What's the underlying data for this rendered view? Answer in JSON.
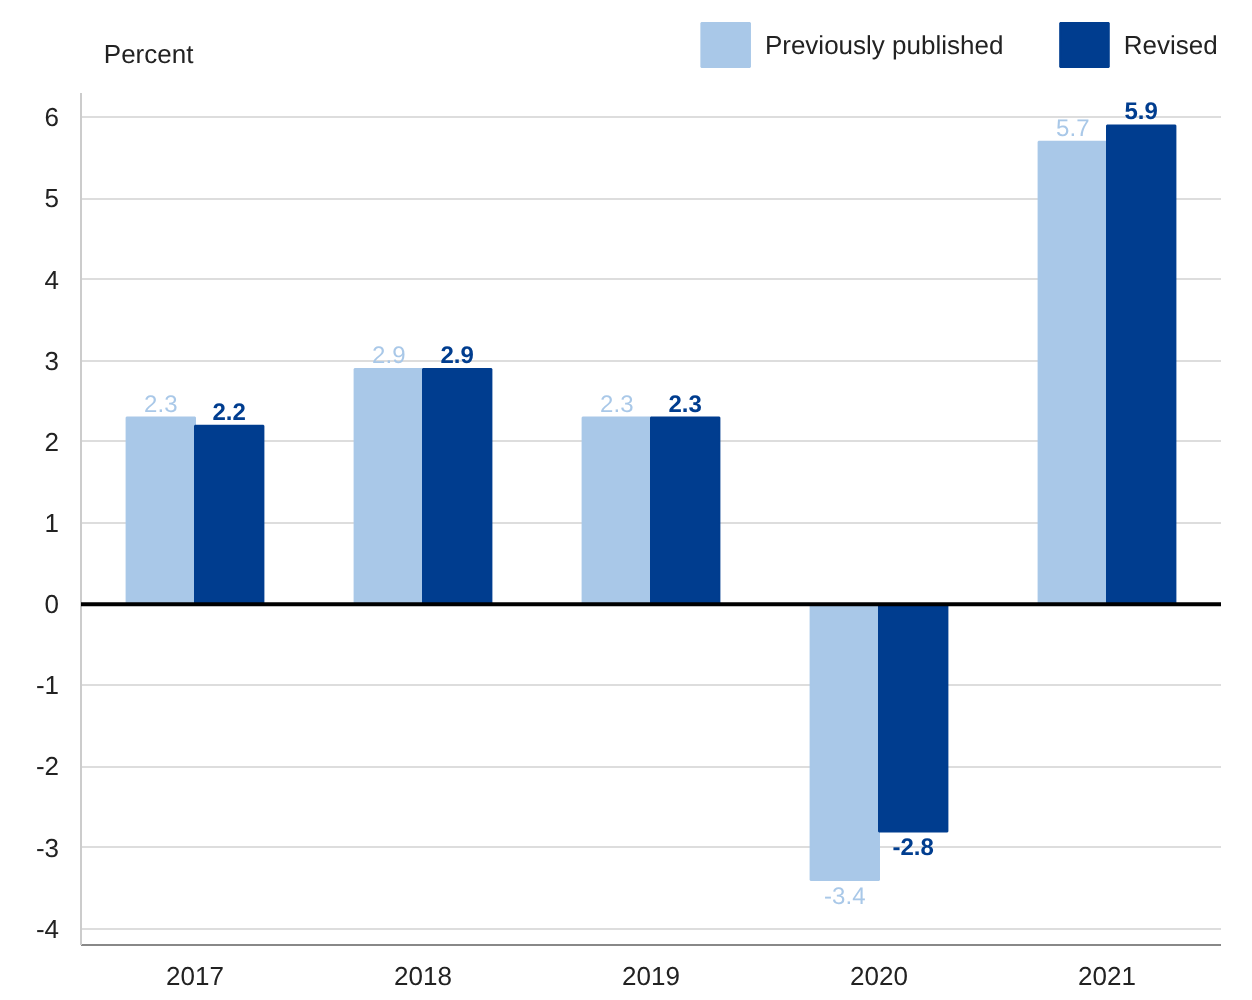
{
  "chart_data": {
    "type": "bar",
    "ylabel": "Percent",
    "categories": [
      "2017",
      "2018",
      "2019",
      "2020",
      "2021"
    ],
    "series": [
      {
        "name": "Previously published",
        "color": "#a9c8e8",
        "values": [
          2.3,
          2.9,
          2.3,
          -3.4,
          5.7
        ]
      },
      {
        "name": "Revised",
        "color": "#003d8f",
        "values": [
          2.2,
          2.9,
          2.3,
          -2.8,
          5.9
        ]
      }
    ],
    "ylim": [
      -4.2,
      6.3
    ],
    "yticks": [
      -4,
      -3,
      -2,
      -1,
      0,
      1,
      2,
      3,
      4,
      5,
      6
    ],
    "grid": "y",
    "legend": "top right",
    "data_labels": true
  }
}
